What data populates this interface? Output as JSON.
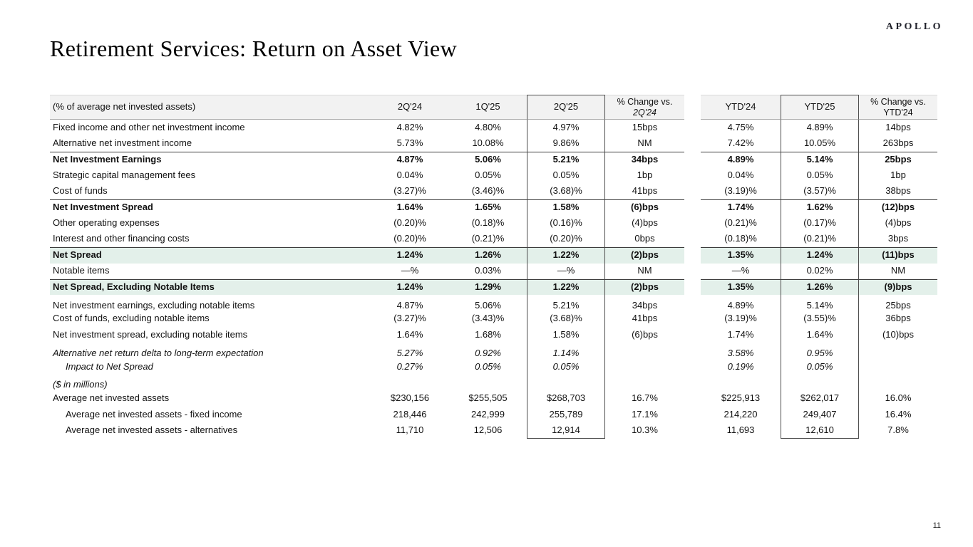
{
  "logo": "APOLLO",
  "title": "Retirement Services: Return on Asset View",
  "page_number": "11",
  "colors": {
    "highlight_row": "#e3f0ea",
    "header_bg": "#f2f2f2",
    "box_border": "#4d4d4d",
    "rule_dark": "#3c3c3c",
    "rule_light": "#a9a9a9",
    "text": "#111111"
  },
  "table": {
    "label_header": "(% of average net invested assets)",
    "columns": [
      {
        "label": "2Q'24"
      },
      {
        "label": "1Q'25"
      },
      {
        "label": "2Q'25",
        "boxed": true
      },
      {
        "label": "% Change vs.",
        "sublabel": "2Q'24",
        "sublabel_italic": true
      },
      {
        "label": "YTD'24"
      },
      {
        "label": "YTD'25",
        "boxed": true
      },
      {
        "label": "% Change vs.",
        "sublabel": "YTD'24",
        "sublabel_italic": false
      }
    ],
    "sections": [
      {
        "rows": [
          {
            "label": "Fixed income and other net investment income",
            "values": [
              "4.82%",
              "4.80%",
              "4.97%",
              "15bps",
              "4.75%",
              "4.89%",
              "14bps"
            ]
          },
          {
            "label": "Alternative net investment income",
            "values": [
              "5.73%",
              "10.08%",
              "9.86%",
              "NM",
              "7.42%",
              "10.05%",
              "263bps"
            ]
          },
          {
            "label": "Net Investment Earnings",
            "bold": true,
            "topline": true,
            "values": [
              "4.87%",
              "5.06%",
              "5.21%",
              "34bps",
              "4.89%",
              "5.14%",
              "25bps"
            ]
          },
          {
            "label": "Strategic capital management fees",
            "values": [
              "0.04%",
              "0.05%",
              "0.05%",
              "1bp",
              "0.04%",
              "0.05%",
              "1bp"
            ]
          },
          {
            "label": "Cost of funds",
            "values": [
              "(3.27)%",
              "(3.46)%",
              "(3.68)%",
              "41bps",
              "(3.19)%",
              "(3.57)%",
              "38bps"
            ]
          },
          {
            "label": "Net Investment Spread",
            "bold": true,
            "topline": true,
            "values": [
              "1.64%",
              "1.65%",
              "1.58%",
              "(6)bps",
              "1.74%",
              "1.62%",
              "(12)bps"
            ]
          },
          {
            "label": "Other operating expenses",
            "values": [
              "(0.20)%",
              "(0.18)%",
              "(0.16)%",
              "(4)bps",
              "(0.21)%",
              "(0.17)%",
              "(4)bps"
            ]
          },
          {
            "label": "Interest and other financing costs",
            "values": [
              "(0.20)%",
              "(0.21)%",
              "(0.20)%",
              "0bps",
              "(0.18)%",
              "(0.21)%",
              "3bps"
            ]
          },
          {
            "label": "Net Spread",
            "bold": true,
            "topline": true,
            "highlight": true,
            "values": [
              "1.24%",
              "1.26%",
              "1.22%",
              "(2)bps",
              "1.35%",
              "1.24%",
              "(11)bps"
            ]
          },
          {
            "label": "Notable items",
            "values": [
              "—%",
              "0.03%",
              "—%",
              "NM",
              "—%",
              "0.02%",
              "NM"
            ]
          },
          {
            "label": "Net Spread, Excluding Notable Items",
            "bold": true,
            "topline": true,
            "highlight": true,
            "values": [
              "1.24%",
              "1.29%",
              "1.22%",
              "(2)bps",
              "1.35%",
              "1.26%",
              "(9)bps"
            ]
          }
        ]
      },
      {
        "rows": [
          {
            "label": "Net investment earnings, excluding notable items",
            "values": [
              "4.87%",
              "5.06%",
              "5.21%",
              "34bps",
              "4.89%",
              "5.14%",
              "25bps"
            ]
          },
          {
            "label": "Cost of funds, excluding notable items",
            "values": [
              "(3.27)%",
              "(3.43)%",
              "(3.68)%",
              "41bps",
              "(3.19)%",
              "(3.55)%",
              "36bps"
            ]
          },
          {
            "label": "Net investment spread, excluding notable items",
            "values": [
              "1.64%",
              "1.68%",
              "1.58%",
              "(6)bps",
              "1.74%",
              "1.64%",
              "(10)bps"
            ]
          }
        ]
      },
      {
        "rows": [
          {
            "label": "Alternative net return delta to long-term expectation",
            "italic": true,
            "values": [
              "5.27%",
              "0.92%",
              "1.14%",
              "",
              "3.58%",
              "0.95%",
              ""
            ]
          },
          {
            "label": "Impact to Net Spread",
            "italic": true,
            "indent": true,
            "values": [
              "0.27%",
              "0.05%",
              "0.05%",
              "",
              "0.19%",
              "0.05%",
              ""
            ]
          }
        ]
      },
      {
        "rows": [
          {
            "label": "($ in millions)",
            "italic": true,
            "values": [
              "",
              "",
              "",
              "",
              "",
              "",
              ""
            ]
          },
          {
            "label": "Average net invested assets",
            "values": [
              "$230,156",
              "$255,505",
              "$268,703",
              "16.7%",
              "$225,913",
              "$262,017",
              "16.0%"
            ]
          },
          {
            "label": "Average net invested assets - fixed income",
            "indent": true,
            "values": [
              "218,446",
              "242,999",
              "255,789",
              "17.1%",
              "214,220",
              "249,407",
              "16.4%"
            ]
          },
          {
            "label": "Average net invested assets - alternatives",
            "indent": true,
            "values": [
              "11,710",
              "12,506",
              "12,914",
              "10.3%",
              "11,693",
              "12,610",
              "7.8%"
            ]
          }
        ]
      }
    ]
  }
}
